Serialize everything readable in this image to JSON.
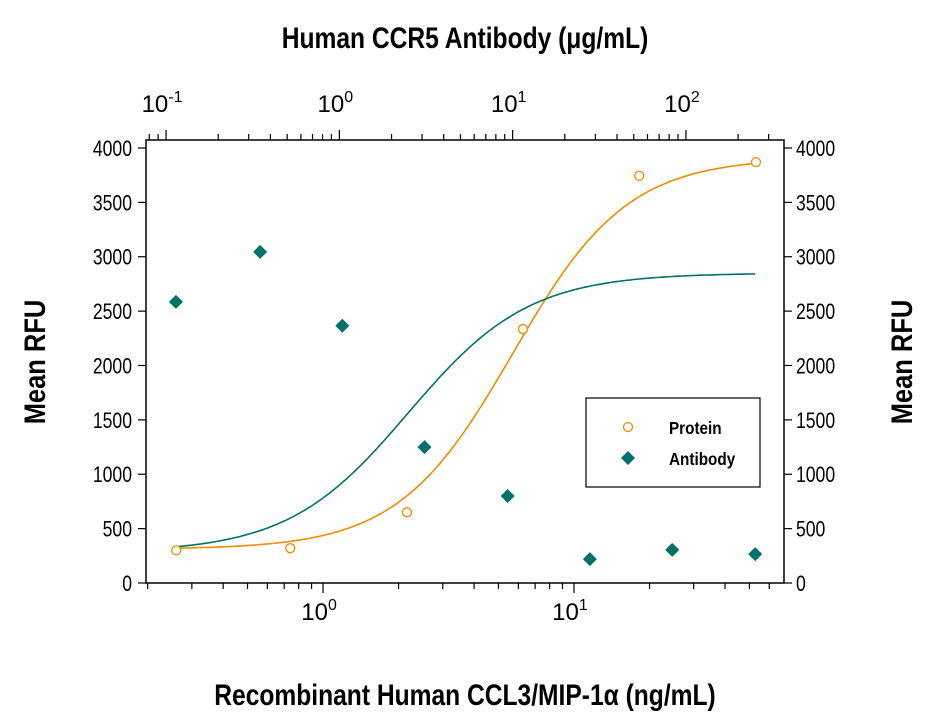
{
  "chart_data": {
    "type": "scatter",
    "title": "Human CCR5 Antibody (μg/mL)",
    "xlabel": "Recombinant Human CCL3/MIP-1α (ng/mL)",
    "ylabel_left": "Mean RFU",
    "ylabel_right": "Mean RFU",
    "x_scale": "log",
    "x_bottom_range": [
      0.197,
      68.7
    ],
    "x_bottom_ticks": [
      {
        "value": 1,
        "base": "10",
        "exp": "0"
      },
      {
        "value": 10,
        "base": "10",
        "exp": "1"
      }
    ],
    "x_top_scale": "log",
    "x_top_range": [
      0.0766,
      368
    ],
    "x_top_ticks": [
      {
        "value": 0.1,
        "base": "10",
        "exp": "-1"
      },
      {
        "value": 1,
        "base": "10",
        "exp": "0"
      },
      {
        "value": 10,
        "base": "10",
        "exp": "1"
      },
      {
        "value": 100,
        "base": "10",
        "exp": "2"
      }
    ],
    "ylim": [
      0,
      4000
    ],
    "y_ticks": [
      0,
      500,
      1000,
      1500,
      2000,
      2500,
      3000,
      3500,
      4000
    ],
    "grid": false,
    "legend_placement": "center-right",
    "series": [
      {
        "name": "Protein",
        "axis": "bottom",
        "marker": "open-circle",
        "color": "#f08a00",
        "x": [
          0.26,
          0.74,
          2.16,
          6.26,
          18.2,
          53.1
        ],
        "y": [
          300,
          320,
          650,
          2335,
          3745,
          3870
        ],
        "fit": {
          "bottom": 310,
          "top": 3910,
          "ec50": 5.7,
          "hill": 1.9
        }
      },
      {
        "name": "Antibody",
        "axis": "top",
        "marker": "filled-diamond",
        "color": "#00716a",
        "x": [
          0.114,
          0.349,
          1.04,
          3.1,
          9.35,
          27.9,
          83.3,
          251
        ],
        "y": [
          2585,
          3045,
          2365,
          1250,
          800,
          220,
          305,
          265
        ],
        "fit": {
          "bottom": 280,
          "top": 2850,
          "ec50": 2.5,
          "hill": 1.25
        }
      }
    ]
  }
}
